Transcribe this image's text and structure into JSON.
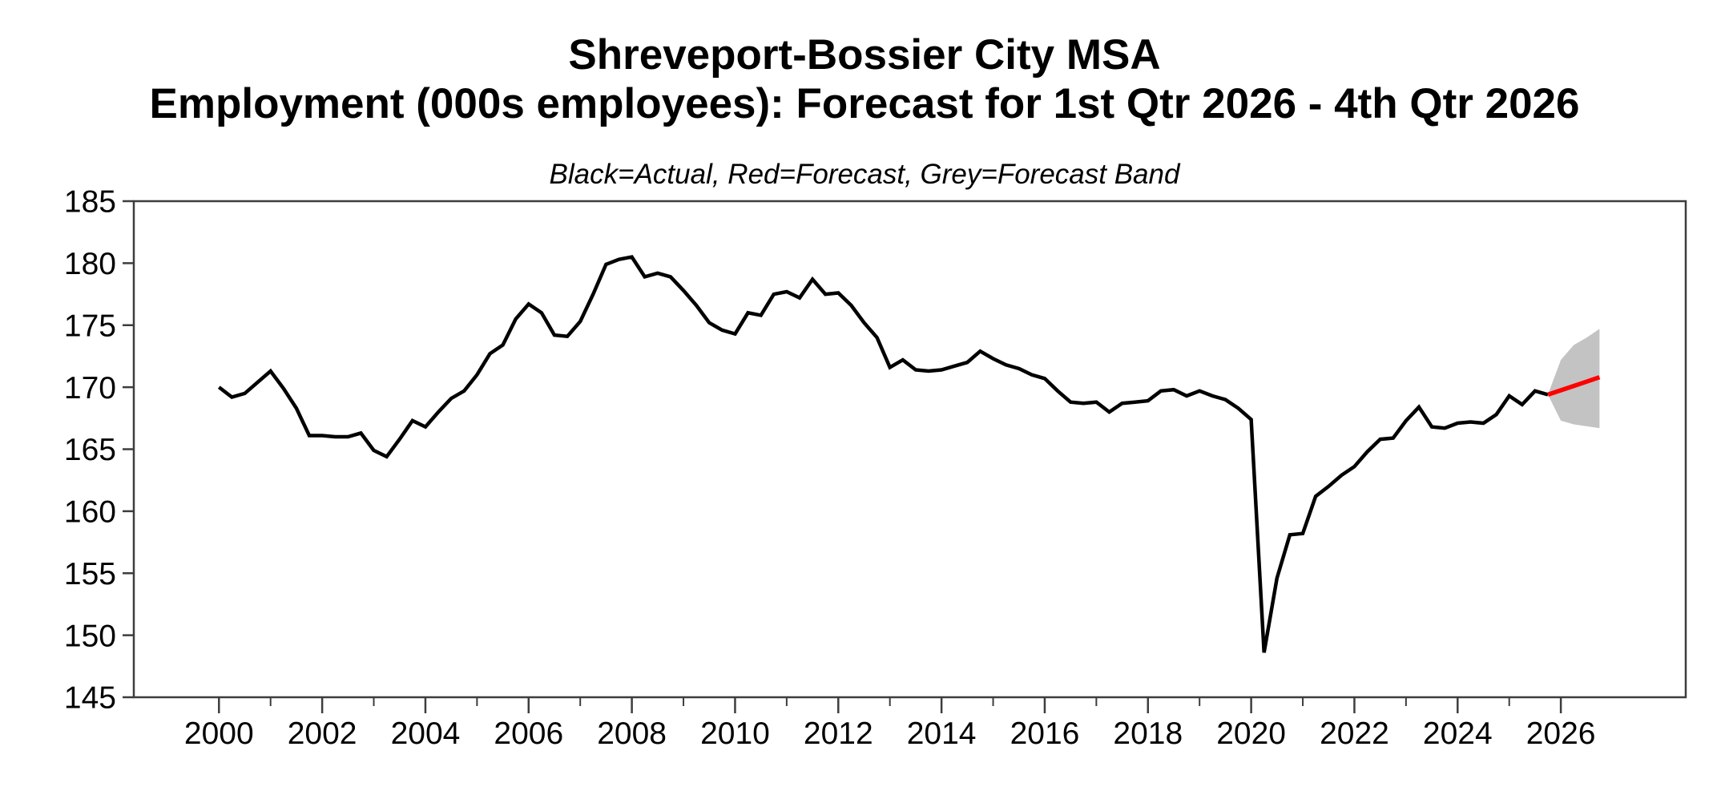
{
  "title": {
    "line1": "Shreveport-Bossier City MSA",
    "line2": "Employment (000s employees): Forecast for 1st Qtr 2026 - 4th Qtr 2026"
  },
  "legend_note": "Black=Actual, Red=Forecast, Grey=Forecast Band",
  "colors": {
    "actual": "#000000",
    "forecast": "#ff0000",
    "band": "#c3c3c3",
    "axis": "#3d3d3d",
    "background": "#ffffff"
  },
  "chart_data": {
    "type": "line",
    "title": "Shreveport-Bossier City MSA",
    "subtitle": "Employment (000s employees): Forecast for 1st Qtr 2026 - 4th Qtr 2026",
    "legend_note": "Black=Actual, Red=Forecast, Grey=Forecast Band",
    "xlabel": "",
    "ylabel": "",
    "ylim": [
      145,
      185
    ],
    "xlim": [
      1998.35,
      2028.42
    ],
    "grid": false,
    "y_ticks": [
      145,
      150,
      155,
      160,
      165,
      170,
      175,
      180,
      185
    ],
    "x_major_ticks": [
      2000,
      2002,
      2004,
      2006,
      2008,
      2010,
      2012,
      2014,
      2016,
      2018,
      2020,
      2022,
      2024,
      2026
    ],
    "x_minor_ticks": [
      2001,
      2003,
      2005,
      2007,
      2009,
      2011,
      2013,
      2015,
      2017,
      2019,
      2021,
      2023,
      2025
    ],
    "frequency": "quarterly",
    "series": [
      {
        "role": "actual",
        "name": "Actual",
        "color": "#000000",
        "x_start": 2000.0,
        "x_step": 0.25,
        "values": [
          170.0,
          169.2,
          169.5,
          170.4,
          171.3,
          169.9,
          168.3,
          166.1,
          166.1,
          166.0,
          166.0,
          166.3,
          164.9,
          164.4,
          165.8,
          167.3,
          166.8,
          168.0,
          169.1,
          169.7,
          171.0,
          172.7,
          173.4,
          175.5,
          176.7,
          176.0,
          174.2,
          174.1,
          175.3,
          177.5,
          179.9,
          180.3,
          180.5,
          178.9,
          179.2,
          178.9,
          177.8,
          176.6,
          175.2,
          174.6,
          174.3,
          176.0,
          175.8,
          177.5,
          177.7,
          177.2,
          178.7,
          177.5,
          177.6,
          176.6,
          175.2,
          174.0,
          171.6,
          172.2,
          171.4,
          171.3,
          171.4,
          171.7,
          172.0,
          172.9,
          172.3,
          171.8,
          171.5,
          171.0,
          170.7,
          169.7,
          168.8,
          168.7,
          168.8,
          168.0,
          168.7,
          168.8,
          168.9,
          169.7,
          169.8,
          169.3,
          169.7,
          169.3,
          169.0,
          168.3,
          167.4,
          148.6,
          154.6,
          158.1,
          158.2,
          161.2,
          162.0,
          162.9,
          163.6,
          164.8,
          165.8,
          165.9,
          167.3,
          168.4,
          166.8,
          166.7,
          167.1,
          167.2,
          167.1,
          167.8,
          169.3,
          168.6,
          169.7,
          169.4
        ]
      },
      {
        "role": "forecast",
        "name": "Forecast",
        "color": "#ff0000",
        "x_start": 2025.75,
        "x_step": 0.25,
        "values": [
          169.4,
          169.75,
          170.1,
          170.45,
          170.8
        ]
      },
      {
        "role": "band",
        "name": "Forecast Band",
        "color": "#c3c3c3",
        "x_start": 2025.75,
        "x_step": 0.25,
        "upper": [
          169.4,
          172.2,
          173.4,
          174.0,
          174.7
        ],
        "lower": [
          169.4,
          167.3,
          167.0,
          166.85,
          166.7
        ]
      }
    ]
  }
}
